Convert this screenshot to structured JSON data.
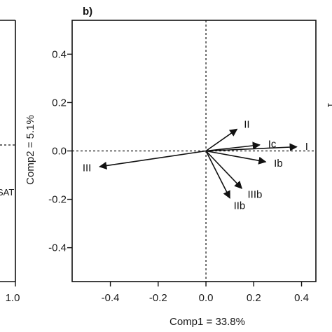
{
  "chart_data": [
    {
      "panel": "",
      "partial": true,
      "visible_text": {
        "variable_label": "SAT",
        "x_tick_right": "1.0"
      }
    },
    {
      "panel": "b)",
      "type": "biplot",
      "xlabel": "Comp1 = 33.8%",
      "ylabel": "Comp2 = 5.1%",
      "xlim": [
        -0.56,
        0.46
      ],
      "ylim": [
        -0.54,
        0.54
      ],
      "x_ticks": [
        {
          "v": -0.4,
          "label": "-0.4"
        },
        {
          "v": -0.2,
          "label": "-0.2"
        },
        {
          "v": 0.0,
          "label": "0.0"
        },
        {
          "v": 0.2,
          "label": "0.2"
        },
        {
          "v": 0.4,
          "label": "0.4"
        }
      ],
      "y_ticks": [
        {
          "v": 0.4,
          "label": "0.4"
        },
        {
          "v": 0.2,
          "label": "0.2"
        },
        {
          "v": 0.0,
          "label": "0.0"
        },
        {
          "v": -0.2,
          "label": "-0.2"
        },
        {
          "v": -0.4,
          "label": "-0.4"
        }
      ],
      "reference_lines": {
        "x0": true,
        "y0": true,
        "style": "dashed"
      },
      "vectors": [
        {
          "label": "I",
          "x": 0.38,
          "y": 0.017
        },
        {
          "label": "Ic",
          "x": 0.225,
          "y": 0.025
        },
        {
          "label": "II",
          "x": 0.13,
          "y": 0.09
        },
        {
          "label": "Ib",
          "x": 0.25,
          "y": -0.045
        },
        {
          "label": "IIIb",
          "x": 0.15,
          "y": -0.155
        },
        {
          "label": "IIb",
          "x": 0.1,
          "y": -0.195
        },
        {
          "label": "III",
          "x": -0.445,
          "y": -0.065
        }
      ]
    }
  ],
  "colors": {
    "ink": "#111111",
    "frame": "#111111",
    "background": "#ffffff"
  },
  "right_edge_text": "1"
}
